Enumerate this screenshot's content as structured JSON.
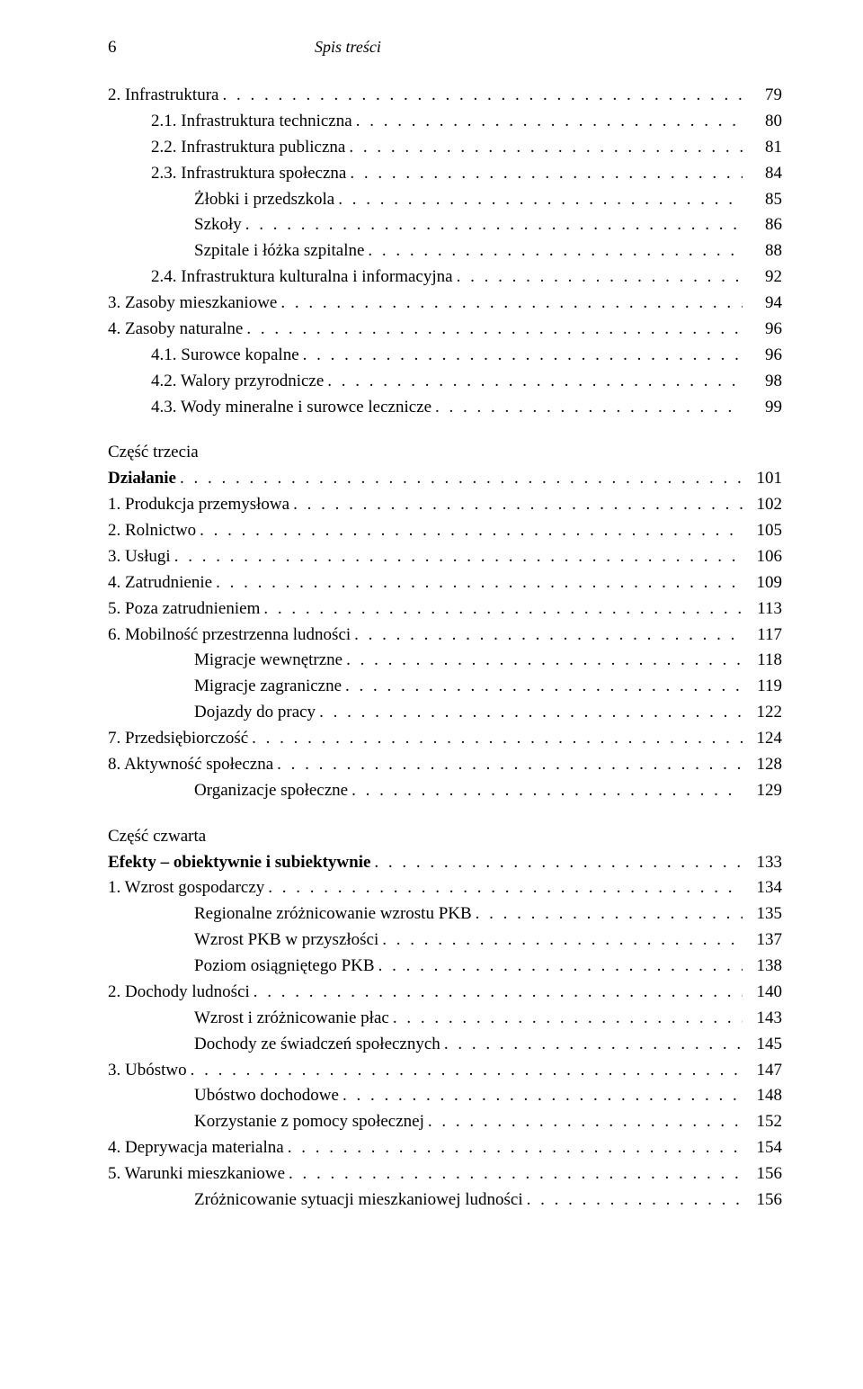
{
  "header": {
    "page_number": "6",
    "title": "Spis treści"
  },
  "entries": [
    {
      "label": "2. Infrastruktura",
      "page": "79",
      "indent": 0
    },
    {
      "label": "2.1. Infrastruktura techniczna",
      "page": "80",
      "indent": 1
    },
    {
      "label": "2.2. Infrastruktura publiczna",
      "page": "81",
      "indent": 1
    },
    {
      "label": "2.3. Infrastruktura społeczna",
      "page": "84",
      "indent": 1
    },
    {
      "label": "Żłobki i przedszkola",
      "page": "85",
      "indent": 2
    },
    {
      "label": "Szkoły",
      "page": "86",
      "indent": 2
    },
    {
      "label": "Szpitale i łóżka szpitalne",
      "page": "88",
      "indent": 2
    },
    {
      "label": "2.4. Infrastruktura kulturalna i informacyjna",
      "page": "92",
      "indent": 1
    },
    {
      "label": "3. Zasoby mieszkaniowe",
      "page": "94",
      "indent": 0
    },
    {
      "label": "4. Zasoby naturalne",
      "page": "96",
      "indent": 0
    },
    {
      "label": "4.1. Surowce kopalne",
      "page": "96",
      "indent": 1
    },
    {
      "label": "4.2. Walory przyrodnicze",
      "page": "98",
      "indent": 1
    },
    {
      "label": "4.3. Wody mineralne i surowce lecznicze",
      "page": "99",
      "indent": 1
    }
  ],
  "section3": {
    "heading": "Część trzecia",
    "title_label": "Działanie",
    "title_page": "101",
    "entries": [
      {
        "label": "1. Produkcja przemysłowa",
        "page": "102",
        "indent": 0
      },
      {
        "label": "2. Rolnictwo",
        "page": "105",
        "indent": 0
      },
      {
        "label": "3. Usługi",
        "page": "106",
        "indent": 0
      },
      {
        "label": "4. Zatrudnienie",
        "page": "109",
        "indent": 0
      },
      {
        "label": "5. Poza zatrudnieniem",
        "page": "113",
        "indent": 0
      },
      {
        "label": "6. Mobilność przestrzenna ludności",
        "page": "117",
        "indent": 0
      },
      {
        "label": "Migracje wewnętrzne",
        "page": "118",
        "indent": 2
      },
      {
        "label": "Migracje zagraniczne",
        "page": "119",
        "indent": 2
      },
      {
        "label": "Dojazdy do pracy",
        "page": "122",
        "indent": 2
      },
      {
        "label": "7. Przedsiębiorczość",
        "page": "124",
        "indent": 0
      },
      {
        "label": "8. Aktywność społeczna",
        "page": "128",
        "indent": 0
      },
      {
        "label": "Organizacje społeczne",
        "page": "129",
        "indent": 2
      }
    ]
  },
  "section4": {
    "heading": "Część czwarta",
    "title_label": "Efekty – obiektywnie i subiektywnie",
    "title_page": "133",
    "entries": [
      {
        "label": "1. Wzrost gospodarczy",
        "page": "134",
        "indent": 0
      },
      {
        "label": "Regionalne zróżnicowanie wzrostu PKB",
        "page": "135",
        "indent": 2
      },
      {
        "label": "Wzrost PKB w przyszłości",
        "page": "137",
        "indent": 2
      },
      {
        "label": "Poziom osiągniętego PKB",
        "page": "138",
        "indent": 2
      },
      {
        "label": "2. Dochody ludności",
        "page": "140",
        "indent": 0
      },
      {
        "label": "Wzrost i zróżnicowanie płac",
        "page": "143",
        "indent": 2
      },
      {
        "label": "Dochody ze świadczeń społecznych",
        "page": "145",
        "indent": 2
      },
      {
        "label": "3. Ubóstwo",
        "page": "147",
        "indent": 0
      },
      {
        "label": "Ubóstwo dochodowe",
        "page": "148",
        "indent": 2
      },
      {
        "label": "Korzystanie z pomocy społecznej",
        "page": "152",
        "indent": 2
      },
      {
        "label": "4. Deprywacja materialna",
        "page": "154",
        "indent": 0
      },
      {
        "label": "5. Warunki mieszkaniowe",
        "page": "156",
        "indent": 0
      },
      {
        "label": "Zróżnicowanie sytuacji mieszkaniowej ludności",
        "page": "156",
        "indent": 2
      }
    ]
  }
}
